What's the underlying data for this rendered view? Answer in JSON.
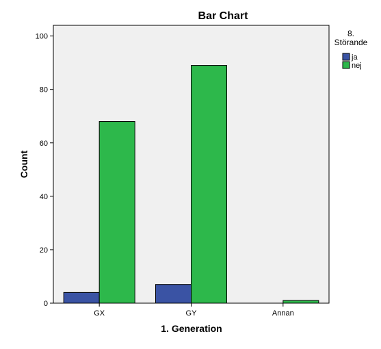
{
  "chart_data": {
    "type": "bar",
    "title": "Bar Chart",
    "xlabel": "1. Generation",
    "ylabel": "Count",
    "categories": [
      "GX",
      "GY",
      "Annan"
    ],
    "series": [
      {
        "name": "ja",
        "values": [
          4,
          7,
          0
        ],
        "color": "#3a53a4"
      },
      {
        "name": "nej",
        "values": [
          68,
          89,
          1
        ],
        "color": "#2db84b"
      }
    ],
    "ylim": [
      0,
      104
    ],
    "yticks": [
      0,
      20,
      40,
      60,
      80,
      100
    ],
    "legend": {
      "title_line1": "8.",
      "title_line2": "Störande",
      "placement": "right"
    },
    "grid": false,
    "plot_background": "#f0f0f0"
  }
}
